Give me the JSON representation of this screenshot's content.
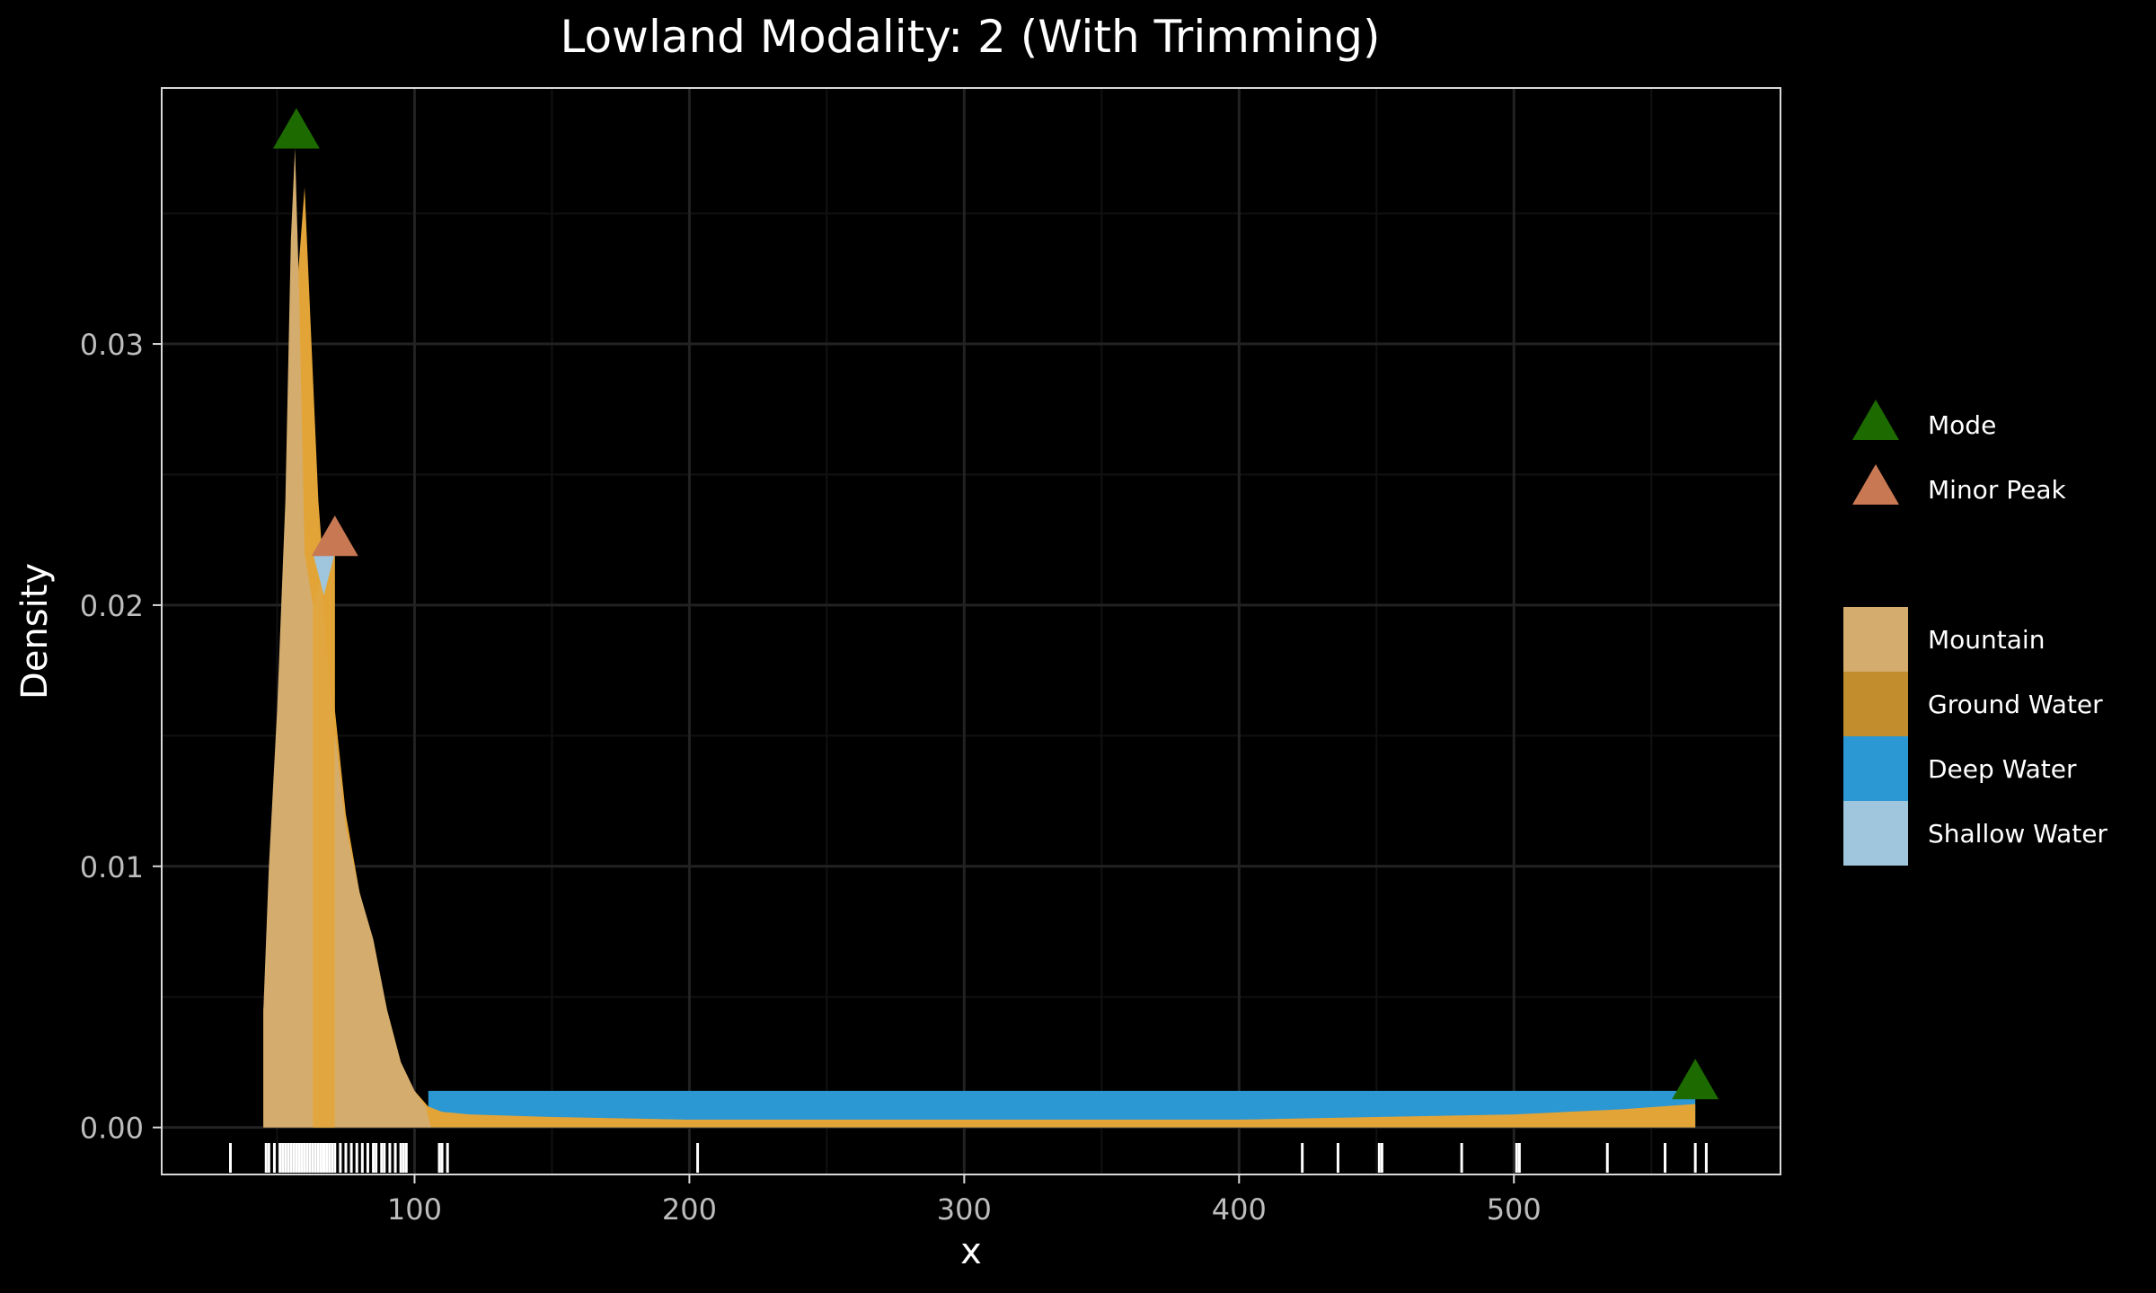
{
  "chart_data": {
    "type": "area",
    "title": "Lowland Modality: 2 (With Trimming)",
    "xlabel": "x",
    "ylabel": "Density",
    "xlim": [
      8,
      597
    ],
    "ylim": [
      -0.0018,
      0.0398
    ],
    "x_ticks": [
      100,
      200,
      300,
      400,
      500
    ],
    "x_tick_labels": [
      "100",
      "200",
      "300",
      "400",
      "500"
    ],
    "y_ticks": [
      0.0,
      0.01,
      0.02,
      0.03
    ],
    "y_tick_labels": [
      "0.00",
      "0.01",
      "0.02",
      "0.03"
    ],
    "grid": true,
    "legend_position": "right",
    "colors": {
      "background": "#000000",
      "grid_major": "#222222",
      "grid_minor": "#111111",
      "mountain": "#d4ac6e",
      "ground_water": "#c28e2d",
      "ground_water_fill": "#e3a437",
      "deep_water": "#2b97d3",
      "shallow_water": "#9fc6dc",
      "mode": "#1d6b00",
      "minor_peak": "#c87853",
      "rug": "#ffffff"
    },
    "legend": {
      "markers": [
        {
          "label": "Mode",
          "color": "#1d6b00"
        },
        {
          "label": "Minor Peak",
          "color": "#c87853"
        }
      ],
      "fills": [
        {
          "label": "Mountain",
          "color": "#d4ac6e"
        },
        {
          "label": "Ground Water",
          "color": "#c28e2d"
        },
        {
          "label": "Deep Water",
          "color": "#2b97d3"
        },
        {
          "label": "Shallow Water",
          "color": "#9fc6dc"
        }
      ]
    },
    "series": [
      {
        "name": "Deep Water",
        "x": [
          105,
          566
        ],
        "y": [
          0.0014,
          0.0014
        ]
      },
      {
        "name": "Ground Water",
        "x": [
          45,
          50,
          55,
          60,
          65,
          70,
          75,
          80,
          85,
          90,
          95,
          100,
          105,
          110,
          120,
          150,
          200,
          250,
          300,
          350,
          400,
          450,
          500,
          540,
          566
        ],
        "y": [
          0.0045,
          0.013,
          0.029,
          0.036,
          0.024,
          0.017,
          0.012,
          0.009,
          0.007,
          0.0045,
          0.0025,
          0.0014,
          0.0008,
          0.0006,
          0.0005,
          0.0004,
          0.0003,
          0.0003,
          0.0003,
          0.0003,
          0.0003,
          0.0004,
          0.0005,
          0.0007,
          0.0009
        ]
      },
      {
        "name": "Mountain",
        "x": [
          45,
          47,
          50,
          53,
          55,
          56.5,
          58,
          60,
          63,
          66,
          70,
          75,
          80,
          85,
          90,
          95,
          100,
          104,
          106
        ],
        "y": [
          0.0045,
          0.01,
          0.016,
          0.024,
          0.034,
          0.0375,
          0.032,
          0.022,
          0.02,
          0.021,
          0.016,
          0.0115,
          0.009,
          0.0072,
          0.0045,
          0.0025,
          0.0014,
          0.0008,
          0.0
        ]
      },
      {
        "name": "Shallow Water",
        "x": [
          63,
          67,
          71
        ],
        "y": [
          0.022,
          0.021,
          0.022
        ]
      }
    ],
    "ground_water_band": {
      "x": [
        63,
        71
      ],
      "y": 0.022
    },
    "modes": [
      {
        "x": 57,
        "y": 0.0381
      },
      {
        "x": 566,
        "y": 0.0017
      }
    ],
    "minor_peaks": [
      {
        "x": 71,
        "y": 0.0225
      }
    ],
    "rug": [
      33,
      46,
      47,
      49,
      51,
      52,
      53,
      54,
      55,
      56,
      57,
      58,
      59,
      60,
      61,
      62,
      63,
      64,
      65,
      66,
      67,
      68,
      69,
      70,
      71,
      73,
      75,
      77,
      79,
      81,
      83,
      85,
      86,
      88,
      89,
      91,
      93,
      95,
      96,
      97,
      109,
      110,
      112,
      203,
      423,
      436,
      451,
      452,
      481,
      501,
      502,
      534,
      555,
      566,
      570
    ]
  }
}
